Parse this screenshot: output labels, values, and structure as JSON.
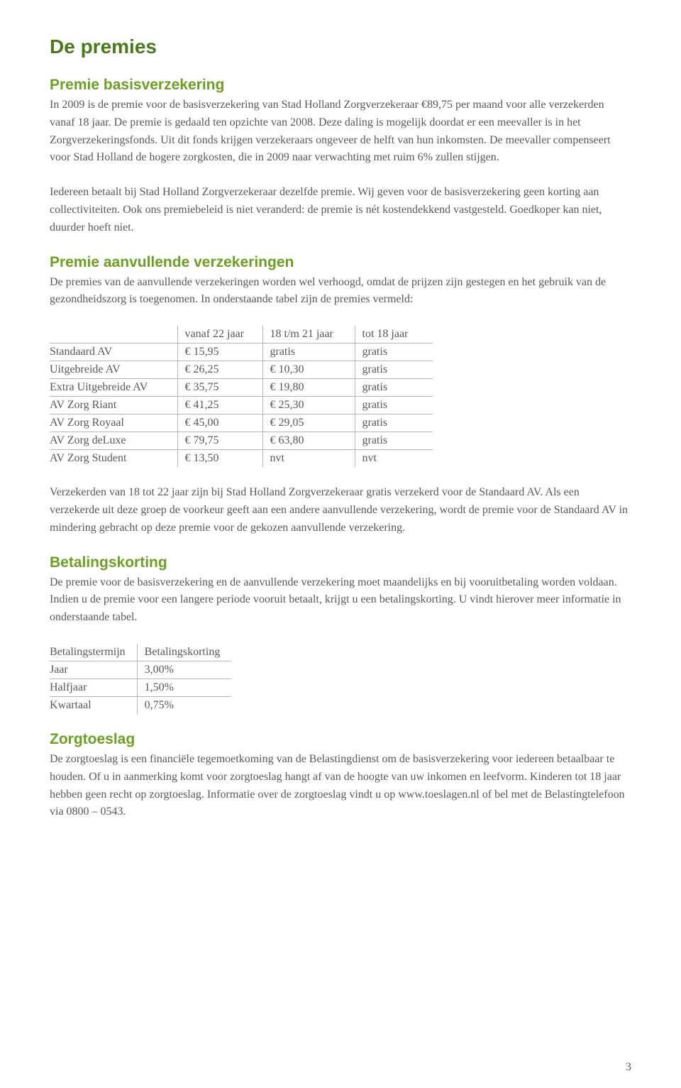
{
  "page_title": "De premies",
  "page_number": "3",
  "sections": {
    "basis": {
      "heading": "Premie basisverzekering",
      "p1": "In 2009 is de premie voor de basisverzekering van Stad Holland Zorgverzekeraar €89,75 per maand voor alle verzekerden vanaf 18 jaar. De premie is gedaald ten opzichte van 2008. Deze daling is mogelijk doordat er een meevaller is in het Zorgverzekeringsfonds. Uit dit fonds krijgen verzekeraars ongeveer de helft van hun inkomsten. De meevaller compenseert voor Stad Holland de hogere zorgkosten, die in 2009 naar verwachting met ruim 6% zullen stijgen.",
      "p2": "Iedereen betaalt bij Stad Holland Zorgverzekeraar dezelfde premie. Wij geven voor de basisverzekering geen korting aan collectiviteiten. Ook ons premiebeleid is niet veranderd: de premie is nét kostendekkend vastgesteld. Goedkoper kan niet, duurder hoeft niet."
    },
    "aanvullend": {
      "heading": "Premie aanvullende verzekeringen",
      "intro": "De premies van de aanvullende verzekeringen worden wel verhoogd, omdat de prijzen zijn gestegen en het gebruik van de gezondheidszorg is toegenomen. In onderstaande tabel zijn de premies vermeld:",
      "table": {
        "headers": [
          "",
          "vanaf 22 jaar",
          "18 t/m 21 jaar",
          "tot 18 jaar"
        ],
        "rows": [
          [
            "Standaard AV",
            "€   15,95",
            "gratis",
            "gratis"
          ],
          [
            "Uitgebreide AV",
            "€  26,25",
            "€  10,30",
            "gratis"
          ],
          [
            "Extra Uitgebreide AV",
            "€   35,75",
            "€  19,80",
            "gratis"
          ],
          [
            "AV Zorg Riant",
            "€   41,25",
            "€  25,30",
            "gratis"
          ],
          [
            "AV Zorg Royaal",
            "€  45,00",
            "€ 29,05",
            "gratis"
          ],
          [
            "AV Zorg deLuxe",
            "€   79,75",
            "€ 63,80",
            "gratis"
          ],
          [
            "AV Zorg Student",
            "€   13,50",
            "nvt",
            "nvt"
          ]
        ]
      },
      "note": "Verzekerden van 18 tot 22 jaar zijn bij Stad Holland Zorgverzekeraar gratis verzekerd voor de Standaard AV. Als een verzekerde uit deze groep de voorkeur geeft aan een andere aanvullende verzekering, wordt de premie voor de Standaard AV in mindering gebracht op deze premie voor de gekozen aanvullende verzekering."
    },
    "korting": {
      "heading": "Betalingskorting",
      "intro": "De premie voor de basisverzekering en de aanvullende verzekering moet maandelijks en bij vooruitbetaling worden voldaan. Indien u de premie voor een langere periode vooruit betaalt, krijgt u een betalingskorting. U vindt hierover meer informatie in onderstaande tabel.",
      "table": {
        "headers": [
          "Betalingstermijn",
          "Betalingskorting"
        ],
        "rows": [
          [
            "Jaar",
            "3,00%"
          ],
          [
            "Halfjaar",
            "1,50%"
          ],
          [
            "Kwartaal",
            "0,75%"
          ]
        ]
      }
    },
    "zorgtoeslag": {
      "heading": "Zorgtoeslag",
      "body": "De zorgtoeslag is een financiële tegemoetkoming van de Belastingdienst om de basisverzekering voor iedereen betaalbaar te houden. Of u in aanmerking komt voor zorgtoeslag hangt af van de hoogte van uw inkomen en leefvorm. Kinderen tot 18 jaar hebben geen recht op zorgtoeslag. Informatie over de zorgtoeslag vindt u op www.toeslagen.nl of bel met de Belastingtelefoon via 0800 – 0543."
    }
  }
}
